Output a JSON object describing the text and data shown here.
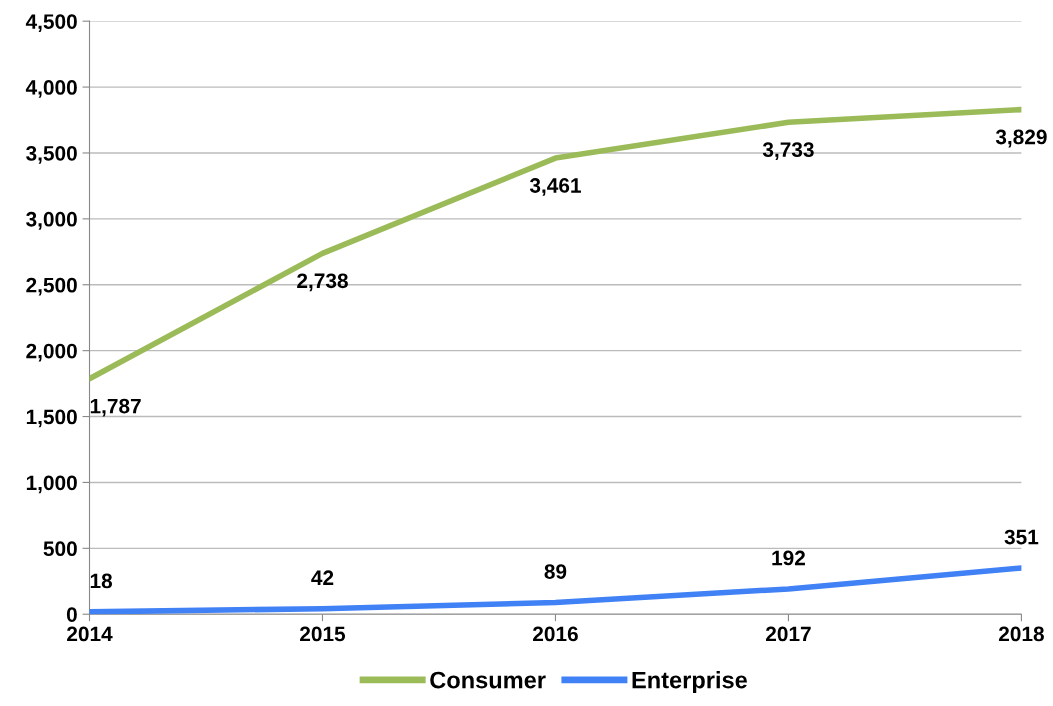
{
  "chart_data": {
    "type": "line",
    "x": [
      2014,
      2015,
      2016,
      2017,
      2018
    ],
    "series": [
      {
        "name": "Consumer",
        "color": "#9bbb59",
        "values": [
          1787,
          2738,
          3461,
          3733,
          3829
        ],
        "value_labels": [
          "1,787",
          "2,738",
          "3,461",
          "3,733",
          "3,829"
        ]
      },
      {
        "name": "Enterprise",
        "color": "#4181f6",
        "values": [
          18,
          42,
          89,
          192,
          351
        ],
        "value_labels": [
          "18",
          "42",
          "89",
          "192",
          "351"
        ]
      }
    ],
    "xlim": [
      2014,
      2018
    ],
    "xticks": [
      2014,
      2015,
      2016,
      2017,
      2018
    ],
    "ylim": [
      0,
      4500
    ],
    "yticks": [
      {
        "value": 0,
        "label": "0"
      },
      {
        "value": 500,
        "label": "500"
      },
      {
        "value": 1000,
        "label": "1,000"
      },
      {
        "value": 1500,
        "label": "1,500"
      },
      {
        "value": 2000,
        "label": "2,000"
      },
      {
        "value": 2500,
        "label": "2,500"
      },
      {
        "value": 3000,
        "label": "3,000"
      },
      {
        "value": 3500,
        "label": "3,500"
      },
      {
        "value": 4000,
        "label": "4,000"
      },
      {
        "value": 4500,
        "label": "4,500"
      }
    ],
    "grid": "y",
    "legend": "bottom",
    "marker": "none",
    "line_style": "solid"
  }
}
